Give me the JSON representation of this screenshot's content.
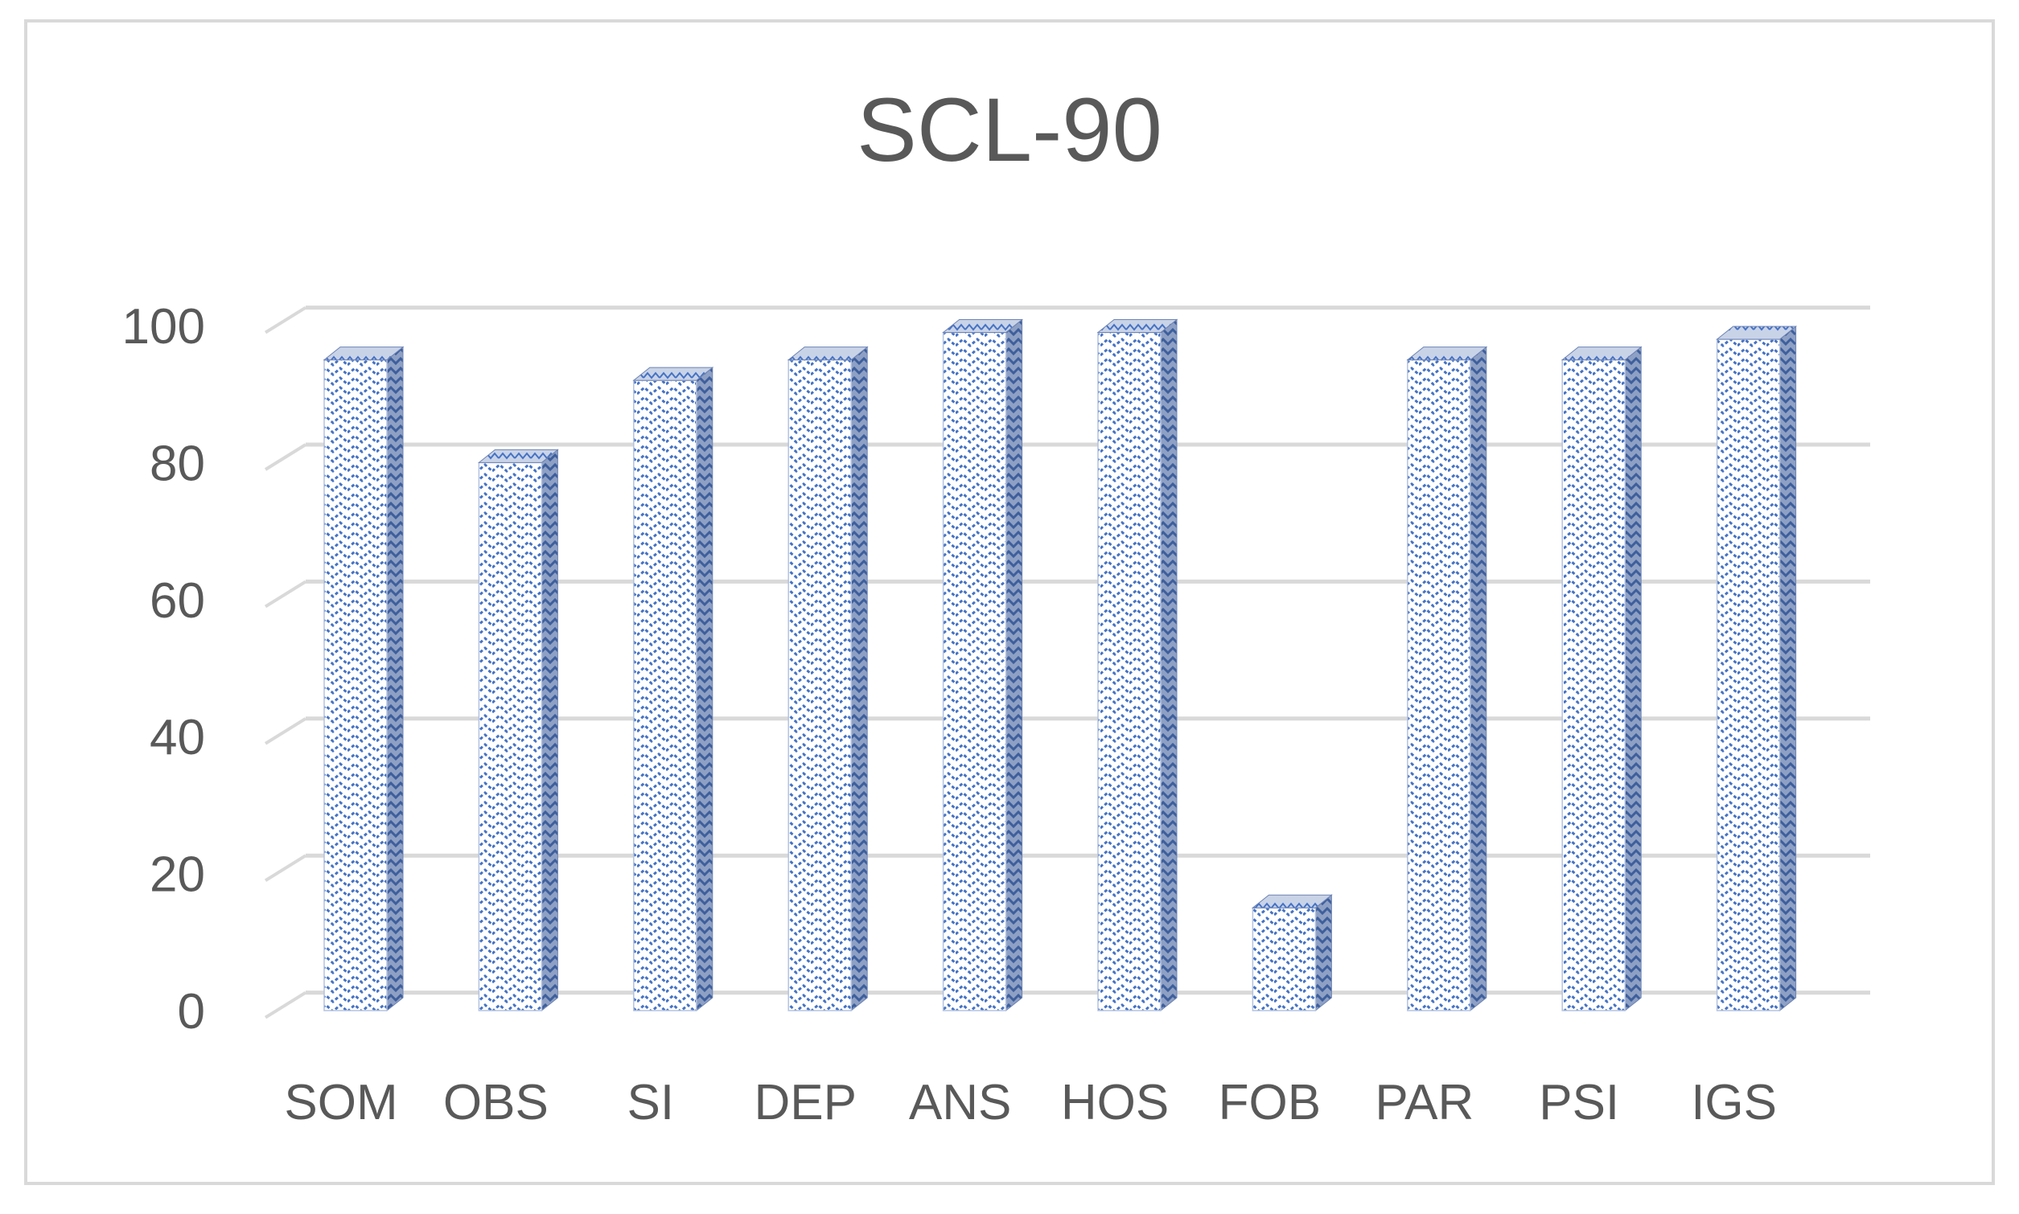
{
  "chart_data": {
    "type": "bar",
    "title": "SCL-90",
    "xlabel": "",
    "ylabel": "",
    "categories": [
      "SOM",
      "OBS",
      "SI",
      "DEP",
      "ANS",
      "HOS",
      "FOB",
      "PAR",
      "PSI",
      "IGS"
    ],
    "values": [
      95,
      80,
      92,
      95,
      99,
      99,
      15,
      95,
      95,
      98
    ],
    "ylim": [
      0,
      100
    ],
    "yticks": [
      "0",
      "20",
      "40",
      "60",
      "80",
      "100"
    ],
    "grid": true,
    "legend": "none",
    "style": "3d-column",
    "colors": {
      "bar_pattern": "#4472c4",
      "bar_background": "#ffffff",
      "grid": "#d9d9d9",
      "text": "#595959"
    }
  }
}
